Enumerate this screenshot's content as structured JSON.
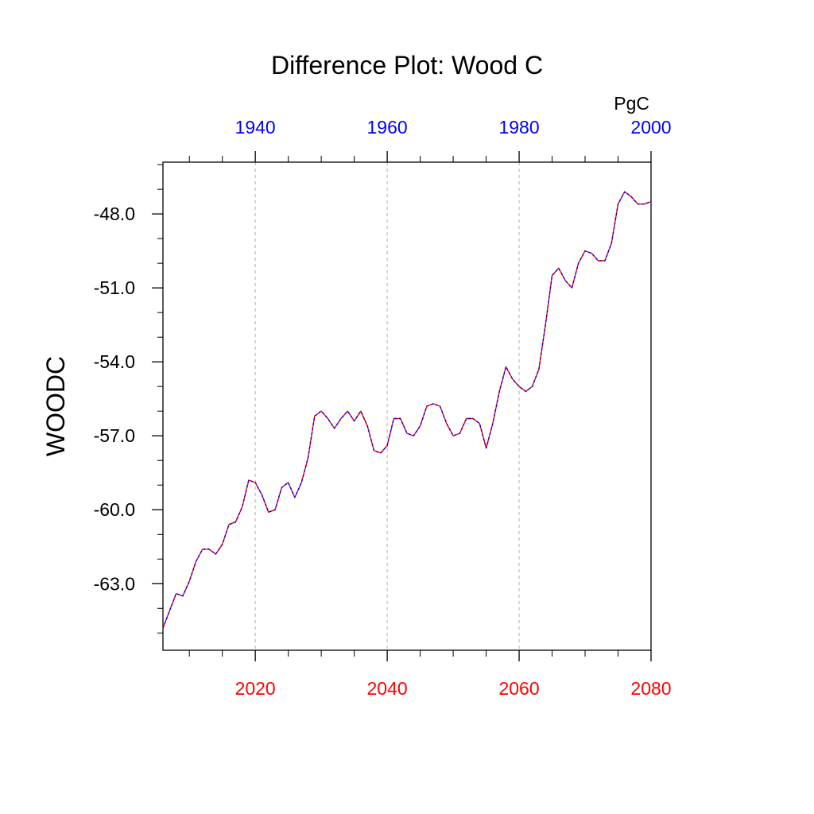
{
  "chart_data": {
    "type": "line",
    "title": "Difference Plot: Wood C",
    "ylabel": "WOODC",
    "units": "PgC",
    "bottom_axis": {
      "range": [
        2006,
        2080
      ],
      "ticks": [
        "2020",
        "2040",
        "2060",
        "2080"
      ],
      "color": "#ff0000"
    },
    "top_axis": {
      "range": [
        1926,
        2000
      ],
      "ticks": [
        "1940",
        "1960",
        "1980",
        "2000"
      ],
      "color": "#0000ff"
    },
    "ylim": [
      -65.7,
      -45.9
    ],
    "y_ticks": [
      "-48.0",
      "-51.0",
      "-54.0",
      "-57.0",
      "-60.0",
      "-63.0"
    ],
    "y_tick_values": [
      -48,
      -51,
      -54,
      -57,
      -60,
      -63
    ],
    "grid": "vertical dashed at major bottom ticks",
    "series": [
      {
        "line_colors": [
          "#ff0000",
          "#0000ff"
        ],
        "x": [
          2006,
          2007,
          2008,
          2009,
          2010,
          2011,
          2012,
          2013,
          2014,
          2015,
          2016,
          2017,
          2018,
          2019,
          2020,
          2021,
          2022,
          2023,
          2024,
          2025,
          2026,
          2027,
          2028,
          2029,
          2030,
          2031,
          2032,
          2033,
          2034,
          2035,
          2036,
          2037,
          2038,
          2039,
          2040,
          2041,
          2042,
          2043,
          2044,
          2045,
          2046,
          2047,
          2048,
          2049,
          2050,
          2051,
          2052,
          2053,
          2054,
          2055,
          2056,
          2057,
          2058,
          2059,
          2060,
          2061,
          2062,
          2063,
          2064,
          2065,
          2066,
          2067,
          2068,
          2069,
          2070,
          2071,
          2072,
          2073,
          2074,
          2075,
          2076,
          2077,
          2078,
          2079,
          2080
        ],
        "y": [
          -64.8,
          -64.1,
          -63.4,
          -63.5,
          -62.9,
          -62.1,
          -61.6,
          -61.6,
          -61.8,
          -61.4,
          -60.6,
          -60.5,
          -59.9,
          -58.8,
          -58.9,
          -59.4,
          -60.1,
          -60.0,
          -59.1,
          -58.9,
          -59.5,
          -58.9,
          -57.9,
          -56.2,
          -56.0,
          -56.3,
          -56.7,
          -56.3,
          -56.0,
          -56.4,
          -56.0,
          -56.6,
          -57.6,
          -57.7,
          -57.4,
          -56.3,
          -56.3,
          -56.9,
          -57.0,
          -56.6,
          -55.8,
          -55.7,
          -55.8,
          -56.5,
          -57.0,
          -56.9,
          -56.3,
          -56.3,
          -56.5,
          -57.5,
          -56.5,
          -55.2,
          -54.2,
          -54.7,
          -55.0,
          -55.2,
          -55.0,
          -54.3,
          -52.5,
          -50.5,
          -50.2,
          -50.7,
          -51.0,
          -50.0,
          -49.5,
          -49.6,
          -49.9,
          -49.9,
          -49.2,
          -47.6,
          -47.1,
          -47.3,
          -47.6,
          -47.6,
          -47.5
        ]
      }
    ]
  }
}
